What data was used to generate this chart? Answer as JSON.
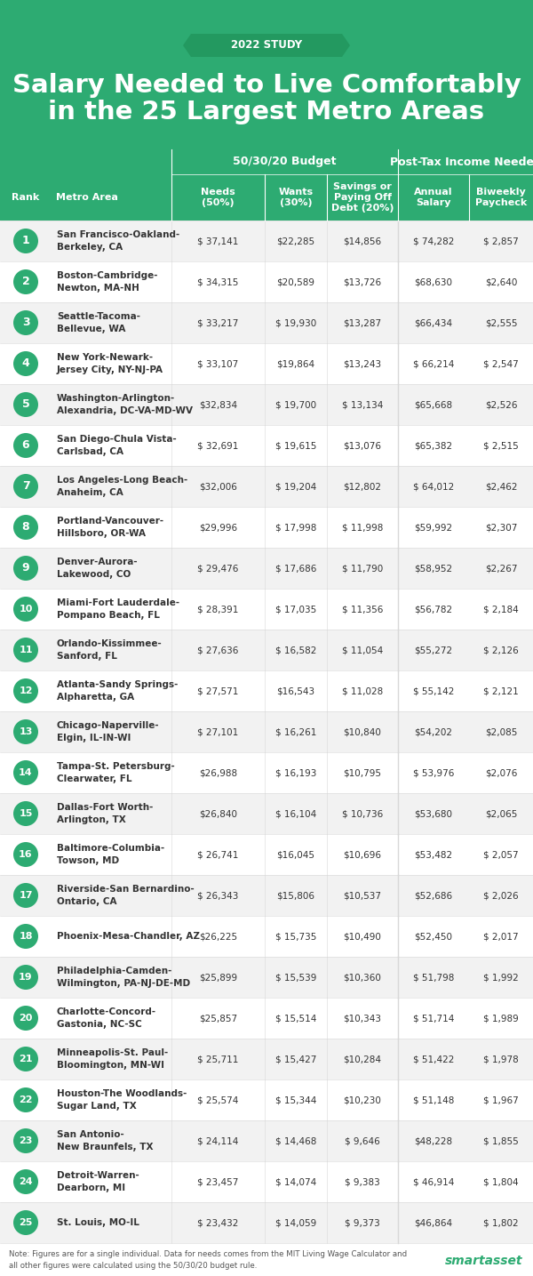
{
  "title_line1": "Salary Needed to Live Comfortably",
  "title_line2": "in the 25 Largest Metro Areas",
  "banner_text": "2022 STUDY",
  "header_bg": "#2dab72",
  "ribbon_bg": "#239960",
  "row_bg_odd": "#f2f2f2",
  "row_bg_even": "#ffffff",
  "dark_text": "#333333",
  "med_gray": "#d8d8d8",
  "note_text": "Note: Figures are for a single individual. Data for needs comes from the MIT Living Wage Calculator and\nall other figures were calculated using the 50/30/20 budget rule.",
  "brand": "smartasset",
  "rows": [
    [
      1,
      "San Francisco-Oakland-\nBerkeley, CA",
      "$ 37,141",
      "$22,285",
      "$14,856",
      "$ 74,282",
      "$ 2,857"
    ],
    [
      2,
      "Boston-Cambridge-\nNewton, MA-NH",
      "$ 34,315",
      "$20,589",
      "$13,726",
      "$68,630",
      "$2,640"
    ],
    [
      3,
      "Seattle-Tacoma-\nBellevue, WA",
      "$ 33,217",
      "$ 19,930",
      "$13,287",
      "$66,434",
      "$2,555"
    ],
    [
      4,
      "New York-Newark-\nJersey City, NY-NJ-PA",
      "$ 33,107",
      "$19,864",
      "$13,243",
      "$ 66,214",
      "$ 2,547"
    ],
    [
      5,
      "Washington-Arlington-\nAlexandria, DC-VA-MD-WV",
      "$32,834",
      "$ 19,700",
      "$ 13,134",
      "$65,668",
      "$2,526"
    ],
    [
      6,
      "San Diego-Chula Vista-\nCarlsbad, CA",
      "$ 32,691",
      "$ 19,615",
      "$13,076",
      "$65,382",
      "$ 2,515"
    ],
    [
      7,
      "Los Angeles-Long Beach-\nAnaheim, CA",
      "$32,006",
      "$ 19,204",
      "$12,802",
      "$ 64,012",
      "$2,462"
    ],
    [
      8,
      "Portland-Vancouver-\nHillsboro, OR-WA",
      "$29,996",
      "$ 17,998",
      "$ 11,998",
      "$59,992",
      "$2,307"
    ],
    [
      9,
      "Denver-Aurora-\nLakewood, CO",
      "$ 29,476",
      "$ 17,686",
      "$ 11,790",
      "$58,952",
      "$2,267"
    ],
    [
      10,
      "Miami-Fort Lauderdale-\nPompano Beach, FL",
      "$ 28,391",
      "$ 17,035",
      "$ 11,356",
      "$56,782",
      "$ 2,184"
    ],
    [
      11,
      "Orlando-Kissimmee-\nSanford, FL",
      "$ 27,636",
      "$ 16,582",
      "$ 11,054",
      "$55,272",
      "$ 2,126"
    ],
    [
      12,
      "Atlanta-Sandy Springs-\nAlpharetta, GA",
      "$ 27,571",
      "$16,543",
      "$ 11,028",
      "$ 55,142",
      "$ 2,121"
    ],
    [
      13,
      "Chicago-Naperville-\nElgin, IL-IN-WI",
      "$ 27,101",
      "$ 16,261",
      "$10,840",
      "$54,202",
      "$2,085"
    ],
    [
      14,
      "Tampa-St. Petersburg-\nClearwater, FL",
      "$26,988",
      "$ 16,193",
      "$10,795",
      "$ 53,976",
      "$2,076"
    ],
    [
      15,
      "Dallas-Fort Worth-\nArlington, TX",
      "$26,840",
      "$ 16,104",
      "$ 10,736",
      "$53,680",
      "$2,065"
    ],
    [
      16,
      "Baltimore-Columbia-\nTowson, MD",
      "$ 26,741",
      "$16,045",
      "$10,696",
      "$53,482",
      "$ 2,057"
    ],
    [
      17,
      "Riverside-San Bernardino-\nOntario, CA",
      "$ 26,343",
      "$15,806",
      "$10,537",
      "$52,686",
      "$ 2,026"
    ],
    [
      18,
      "Phoenix-Mesa-Chandler, AZ",
      "$26,225",
      "$ 15,735",
      "$10,490",
      "$52,450",
      "$ 2,017"
    ],
    [
      19,
      "Philadelphia-Camden-\nWilmington, PA-NJ-DE-MD",
      "$25,899",
      "$ 15,539",
      "$10,360",
      "$ 51,798",
      "$ 1,992"
    ],
    [
      20,
      "Charlotte-Concord-\nGastonia, NC-SC",
      "$25,857",
      "$ 15,514",
      "$10,343",
      "$ 51,714",
      "$ 1,989"
    ],
    [
      21,
      "Minneapolis-St. Paul-\nBloomington, MN-WI",
      "$ 25,711",
      "$ 15,427",
      "$10,284",
      "$ 51,422",
      "$ 1,978"
    ],
    [
      22,
      "Houston-The Woodlands-\nSugar Land, TX",
      "$ 25,574",
      "$ 15,344",
      "$10,230",
      "$ 51,148",
      "$ 1,967"
    ],
    [
      23,
      "San Antonio-\nNew Braunfels, TX",
      "$ 24,114",
      "$ 14,468",
      "$ 9,646",
      "$48,228",
      "$ 1,855"
    ],
    [
      24,
      "Detroit-Warren-\nDearborn, MI",
      "$ 23,457",
      "$ 14,074",
      "$ 9,383",
      "$ 46,914",
      "$ 1,804"
    ],
    [
      25,
      "St. Louis, MO-IL",
      "$ 23,432",
      "$ 14,059",
      "$ 9,373",
      "$46,864",
      "$ 1,802"
    ]
  ]
}
